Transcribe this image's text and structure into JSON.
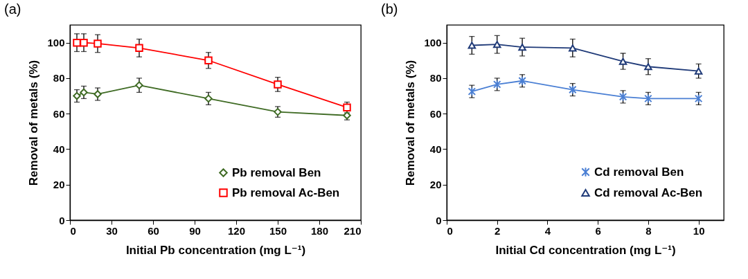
{
  "chart_data": [
    {
      "type": "line",
      "annotations": [
        "(a)"
      ],
      "xlabel": "Initial Pb concentration (mg L⁻¹)",
      "ylabel": "Removal of metals (%)",
      "x": [
        5,
        10,
        20,
        50,
        100,
        150,
        200
      ],
      "xlim": [
        0,
        210
      ],
      "xticks": [
        0,
        30,
        60,
        90,
        120,
        150,
        180,
        210
      ],
      "ylim": [
        0,
        110
      ],
      "yticks": [
        0,
        20,
        40,
        60,
        80,
        100
      ],
      "legend": "bottom right",
      "series": [
        {
          "name": "Pb removal Ben",
          "color": "#3f6b24",
          "marker": "diamond",
          "values": [
            70,
            72,
            71,
            76,
            68.5,
            61,
            59
          ],
          "errors": [
            3.5,
            3.5,
            3.5,
            4,
            3.5,
            3,
            2.5
          ]
        },
        {
          "name": "Pb removal Ac-Ben",
          "color": "#ff0000",
          "marker": "square",
          "values": [
            100,
            100,
            99.5,
            97,
            90,
            76.5,
            63.5
          ],
          "errors": [
            5,
            5,
            5,
            5,
            4.5,
            4,
            3
          ]
        }
      ]
    },
    {
      "type": "line",
      "annotations": [
        "(b)"
      ],
      "xlabel": "Initial Cd concentration (mg L⁻¹)",
      "ylabel": "Removal of metals (%)",
      "x": [
        1,
        2,
        3,
        5,
        7,
        8,
        10
      ],
      "xlim": [
        0,
        11
      ],
      "xticks": [
        0,
        2,
        4,
        6,
        8,
        10
      ],
      "ylim": [
        0,
        110
      ],
      "yticks": [
        0,
        20,
        40,
        60,
        80,
        100
      ],
      "legend": "bottom right",
      "series": [
        {
          "name": "Cd removal Ben",
          "color": "#4a7fd4",
          "marker": "cross",
          "values": [
            72.5,
            76.5,
            78.5,
            73.5,
            69.5,
            68.5,
            68.5
          ],
          "errors": [
            3.5,
            3.5,
            3.5,
            3.5,
            3.5,
            3.5,
            3.5
          ]
        },
        {
          "name": "Cd removal Ac-Ben",
          "color": "#1f3a78",
          "marker": "triangle",
          "values": [
            98.5,
            99,
            97.5,
            97,
            89.5,
            86.5,
            84
          ],
          "errors": [
            5,
            5,
            5,
            5,
            4.5,
            4.5,
            4
          ]
        }
      ]
    }
  ]
}
